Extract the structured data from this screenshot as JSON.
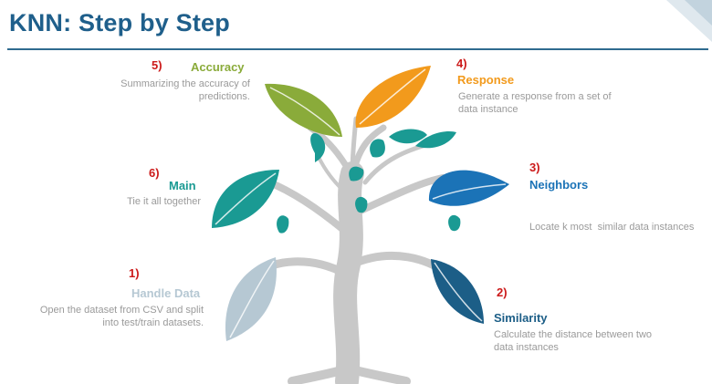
{
  "title": "KNN: Step by Step",
  "colors": {
    "title": "#1f5f8b",
    "trunk": "#c8c8c8",
    "step_number": "#cc1a1a",
    "accuracy": "#8aab3a",
    "response": "#f29a1c",
    "neighbors": "#1b73b7",
    "main": "#1a9a93",
    "handle_data": "#b6c8d3",
    "similarity": "#1c5e87",
    "description": "#9a9a9a"
  },
  "steps": {
    "handle_data": {
      "number": "1)",
      "title": "Handle Data",
      "description": [
        "Open the dataset from CSV and split",
        "into test/train datasets."
      ]
    },
    "similarity": {
      "number": "2)",
      "title": "Similarity",
      "description": [
        "Calculate the distance between two",
        "data instances"
      ]
    },
    "neighbors": {
      "number": "3)",
      "title": "Neighbors",
      "description": [
        "Locate k most  similar data instances"
      ]
    },
    "response": {
      "number": "4)",
      "title": "Response",
      "description": [
        "Generate a response from a set of",
        "data instance"
      ]
    },
    "accuracy": {
      "number": "5)",
      "title": "Accuracy",
      "description": [
        "Summarizing the accuracy of",
        "predictions."
      ]
    },
    "main": {
      "number": "6)",
      "title": "Main",
      "description": [
        "Tie it all together"
      ]
    }
  }
}
